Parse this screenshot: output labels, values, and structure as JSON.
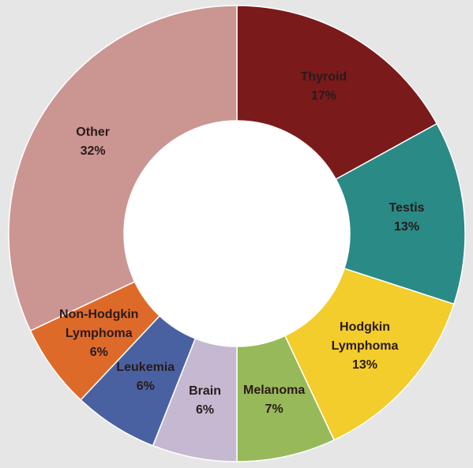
{
  "chart_data": {
    "type": "donut",
    "categories": [
      "Thyroid",
      "Testis",
      "Hodgkin Lymphoma",
      "Melanoma",
      "Brain",
      "Leukemia",
      "Non-Hodgkin Lymphoma",
      "Other"
    ],
    "values": [
      17,
      13,
      13,
      7,
      6,
      6,
      6,
      32
    ],
    "value_labels": [
      "17%",
      "13%",
      "13%",
      "7%",
      "6%",
      "6%",
      "6%",
      "32%"
    ],
    "colors": [
      "#7a1a1b",
      "#2a8a86",
      "#f2cd2b",
      "#97b95a",
      "#c5b9d1",
      "#4a61a1",
      "#de6a2a",
      "#cb9591"
    ]
  }
}
